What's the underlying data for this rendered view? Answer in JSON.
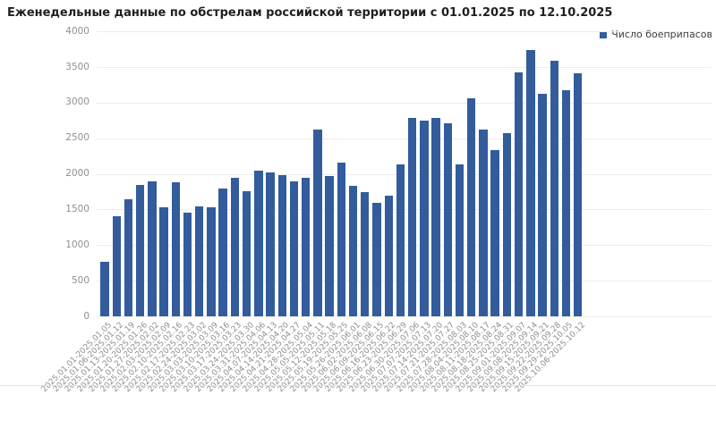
{
  "title": "Еженедельные данные по обстрелам российской территории с 01.01.2025 по 12.10.2025",
  "legend": {
    "label": "Число боеприпасов"
  },
  "colors": {
    "bar": "#325c9c",
    "title": "#1f1f1f",
    "axis_label": "#8f8f8f",
    "grid": "#ececec"
  },
  "chart_data": {
    "type": "bar",
    "title": "Еженедельные данные по обстрелам российской территории с 01.01.2025 по 12.10.2025",
    "legend_entries": [
      "Число боеприпасов"
    ],
    "legend_position": "top-right",
    "grid": true,
    "ylim": [
      0,
      4000
    ],
    "yticks": [
      0,
      500,
      1000,
      1500,
      2000,
      2500,
      3000,
      3500,
      4000
    ],
    "xlabel": "",
    "ylabel": "",
    "categories": [
      "2025.01.01-2025.01.05",
      "2025.01.06-2025.01.12",
      "2025.01.13-2025.01.19",
      "2025.01.20-2025.01.26",
      "2025.01.27-2025.02.02",
      "2025.02.03-2025.02.09",
      "2025.02.10-2025.02.16",
      "2025.02.17-2025.02.23",
      "2025.02.24-2025.03.02",
      "2025.03.03-2025.03.09",
      "2025.03.10-2025.03.16",
      "2025.03.17-2025.03.23",
      "2025.03.24-2025.03.30",
      "2025.03.31-2025.04.06",
      "2025.04.07-2025.04.13",
      "2025.04.14-2025.04.20",
      "2025.04.21-2025.04.27",
      "2025.04.28-2025.05.04",
      "2025.05.05-2025.05.11",
      "2025.05.12-2025.05.18",
      "2025.05.19-2025.05.25",
      "2025.05.26-2025.06.01",
      "2025.06.02-2025.06.08",
      "2025.06.09-2025.06.15",
      "2025.06.16-2025.06.22",
      "2025.06.23-2025.06.29",
      "2025.06.30-2025.07.06",
      "2025.07.07-2025.07.13",
      "2025.07.14-2025.07.20",
      "2025.07.21-2025.07.27",
      "2025.07.28-2025.08.03",
      "2025.08.04-2025.08.10",
      "2025.08.11-2025.08.17",
      "2025.08.18-2025.08.24",
      "2025.08.25-2025.08.31",
      "2025.09.01-2025.09.07",
      "2025.09.08-2025.09.14",
      "2025.09.15-2025.09.21",
      "2025.09.22-2025.09.28",
      "2025.09.29-2025.10.05",
      "2025.10.06-2025.10.12"
    ],
    "values": [
      770,
      1410,
      1650,
      1850,
      1900,
      1530,
      1880,
      1460,
      1540,
      1530,
      1800,
      1950,
      1760,
      2040,
      2020,
      1980,
      1890,
      1950,
      2620,
      1970,
      2160,
      1830,
      1740,
      1590,
      1690,
      2130,
      2790,
      2750,
      2790,
      2710,
      2130,
      3060,
      2620,
      2340,
      2570,
      3430,
      3740,
      3120,
      3590,
      3170,
      3410
    ]
  }
}
